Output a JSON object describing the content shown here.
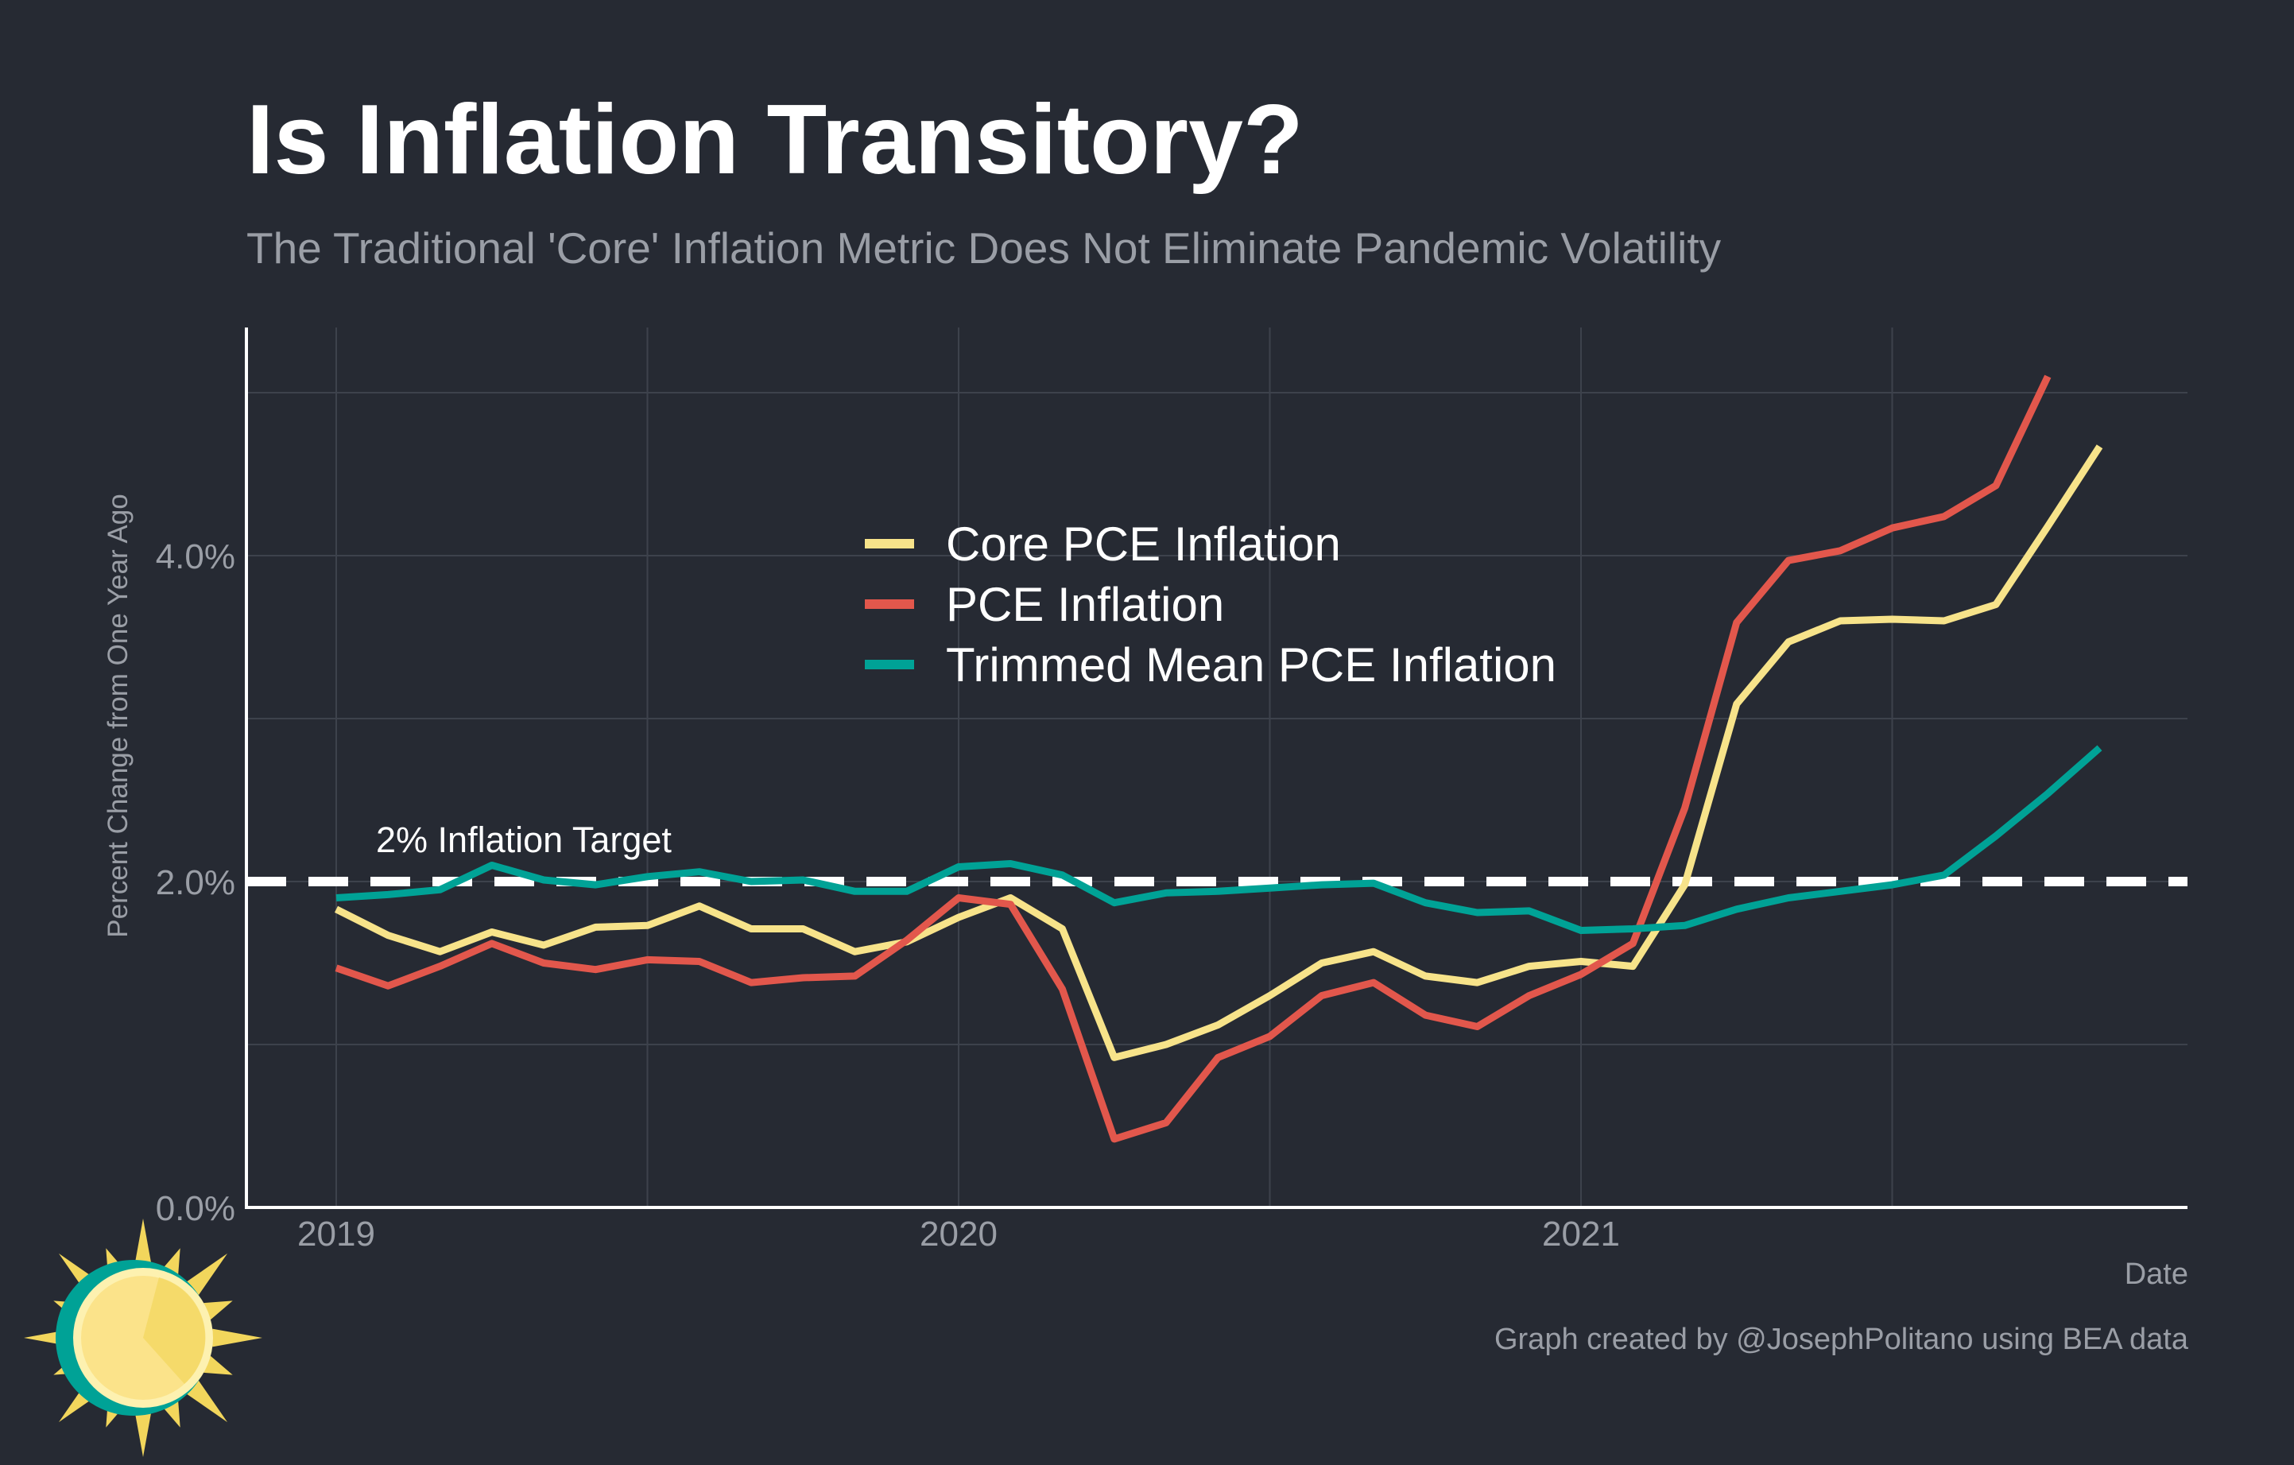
{
  "title": "Is Inflation Transitory?",
  "subtitle": "The Traditional 'Core' Inflation Metric Does Not Eliminate Pandemic Volatility",
  "caption": "Graph created by @JosephPolitano using BEA data",
  "chart_data": {
    "type": "line",
    "xlabel": "Date",
    "ylabel": "Percent Change from One Year Ago",
    "x_start": "2019-01",
    "x_ticks": [
      "2019",
      "2020",
      "2021"
    ],
    "y_ticks": [
      "0.0%",
      "2.0%",
      "4.0%"
    ],
    "y_tick_values": [
      0,
      2,
      4
    ],
    "ylim": [
      0,
      5.4
    ],
    "grid": true,
    "legend_position": "center",
    "reference_line": {
      "value": 2.0,
      "label": "2% Inflation Target",
      "color": "#ffffff",
      "style": "dashed"
    },
    "series": [
      {
        "name": "Core PCE Inflation",
        "color": "#f7e38a",
        "values": [
          1.83,
          1.67,
          1.57,
          1.69,
          1.61,
          1.72,
          1.73,
          1.85,
          1.71,
          1.71,
          1.57,
          1.63,
          1.78,
          1.9,
          1.71,
          0.92,
          1.0,
          1.12,
          1.3,
          1.5,
          1.57,
          1.42,
          1.38,
          1.48,
          1.51,
          1.48,
          1.98,
          3.09,
          3.47,
          3.6,
          3.61,
          3.6,
          3.7,
          4.18,
          4.67
        ]
      },
      {
        "name": "PCE Inflation",
        "color": "#e2574c",
        "values": [
          1.47,
          1.36,
          1.48,
          1.62,
          1.5,
          1.46,
          1.52,
          1.51,
          1.38,
          1.41,
          1.42,
          1.64,
          1.9,
          1.86,
          1.34,
          0.42,
          0.52,
          0.92,
          1.05,
          1.3,
          1.38,
          1.18,
          1.11,
          1.3,
          1.43,
          1.62,
          2.45,
          3.59,
          3.97,
          4.03,
          4.17,
          4.24,
          4.43,
          5.1
        ]
      },
      {
        "name": "Trimmed Mean PCE Inflation",
        "color": "#00a296",
        "values": [
          1.9,
          1.92,
          1.95,
          2.1,
          2.01,
          1.98,
          2.03,
          2.06,
          2.0,
          2.01,
          1.94,
          1.94,
          2.09,
          2.11,
          2.04,
          1.87,
          1.93,
          1.94,
          1.96,
          1.98,
          1.99,
          1.87,
          1.81,
          1.82,
          1.7,
          1.71,
          1.73,
          1.83,
          1.9,
          1.94,
          1.98,
          2.04,
          2.28,
          2.54,
          2.82
        ]
      }
    ]
  },
  "logo": {
    "name": "sun-logo",
    "sun_color": "#fbe38a",
    "ray_color": "#f2d65c",
    "ring_color": "#00a296"
  }
}
